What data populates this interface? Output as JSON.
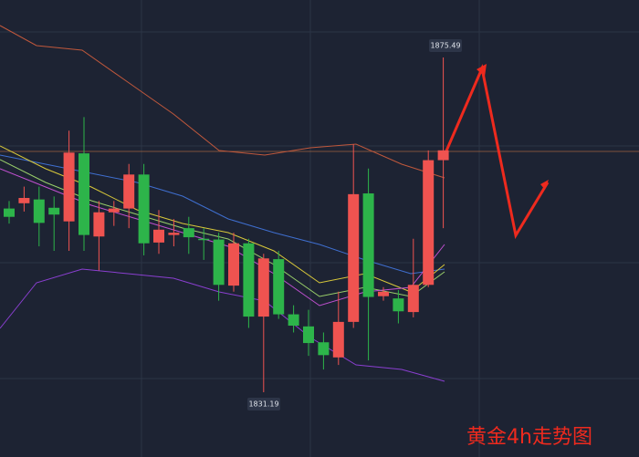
{
  "chart_data": {
    "type": "candlestick",
    "title": "黄金4h走势图",
    "open": [
      1855.5,
      1856.2,
      1856.7,
      1855.6,
      1853.8,
      1862.8,
      1851.8,
      1855.0,
      1855.5,
      1860.0,
      1851.0,
      1852.0,
      1852.9,
      1851.5,
      1851.4,
      1845.3,
      1850.9,
      1841.2,
      1848.8,
      1841.5,
      1839.9,
      1837.8,
      1835.8,
      1840.5,
      1857.5,
      1843.9,
      1843.6,
      1841.8,
      1845.4,
      1861.9
    ],
    "close": [
      1854.4,
      1856.9,
      1853.6,
      1854.7,
      1862.9,
      1852.0,
      1855.0,
      1855.5,
      1860.0,
      1850.9,
      1852.7,
      1852.3,
      1851.7,
      1851.4,
      1845.4,
      1850.9,
      1841.2,
      1848.9,
      1841.5,
      1840.0,
      1837.7,
      1836.1,
      1840.5,
      1857.4,
      1843.8,
      1844.5,
      1841.9,
      1845.4,
      1861.9,
      1863.2
    ],
    "high": [
      1856.5,
      1858.4,
      1858.4,
      1857.1,
      1865.8,
      1867.6,
      1856.5,
      1856.5,
      1861.4,
      1861.4,
      1855.3,
      1854.1,
      1854.4,
      1852.9,
      1852.3,
      1852.3,
      1851.5,
      1849.5,
      1849.9,
      1842.7,
      1842.1,
      1839.1,
      1844.5,
      1864.0,
      1860.8,
      1845.1,
      1844.7,
      1851.5,
      1863.2,
      1875.49
    ],
    "low": [
      1853.5,
      1855.1,
      1850.5,
      1849.9,
      1849.9,
      1849.9,
      1847.3,
      1853.2,
      1852.9,
      1849.3,
      1849.5,
      1850.5,
      1849.5,
      1848.7,
      1843.3,
      1844.5,
      1839.7,
      1831.19,
      1840.9,
      1839.1,
      1836.0,
      1834.2,
      1834.8,
      1839.7,
      1835.4,
      1843.3,
      1840.3,
      1841.1,
      1845.1,
      1852.9
    ],
    "up_color": "#ef5350",
    "down_color": "#2db44a"
  }
}
